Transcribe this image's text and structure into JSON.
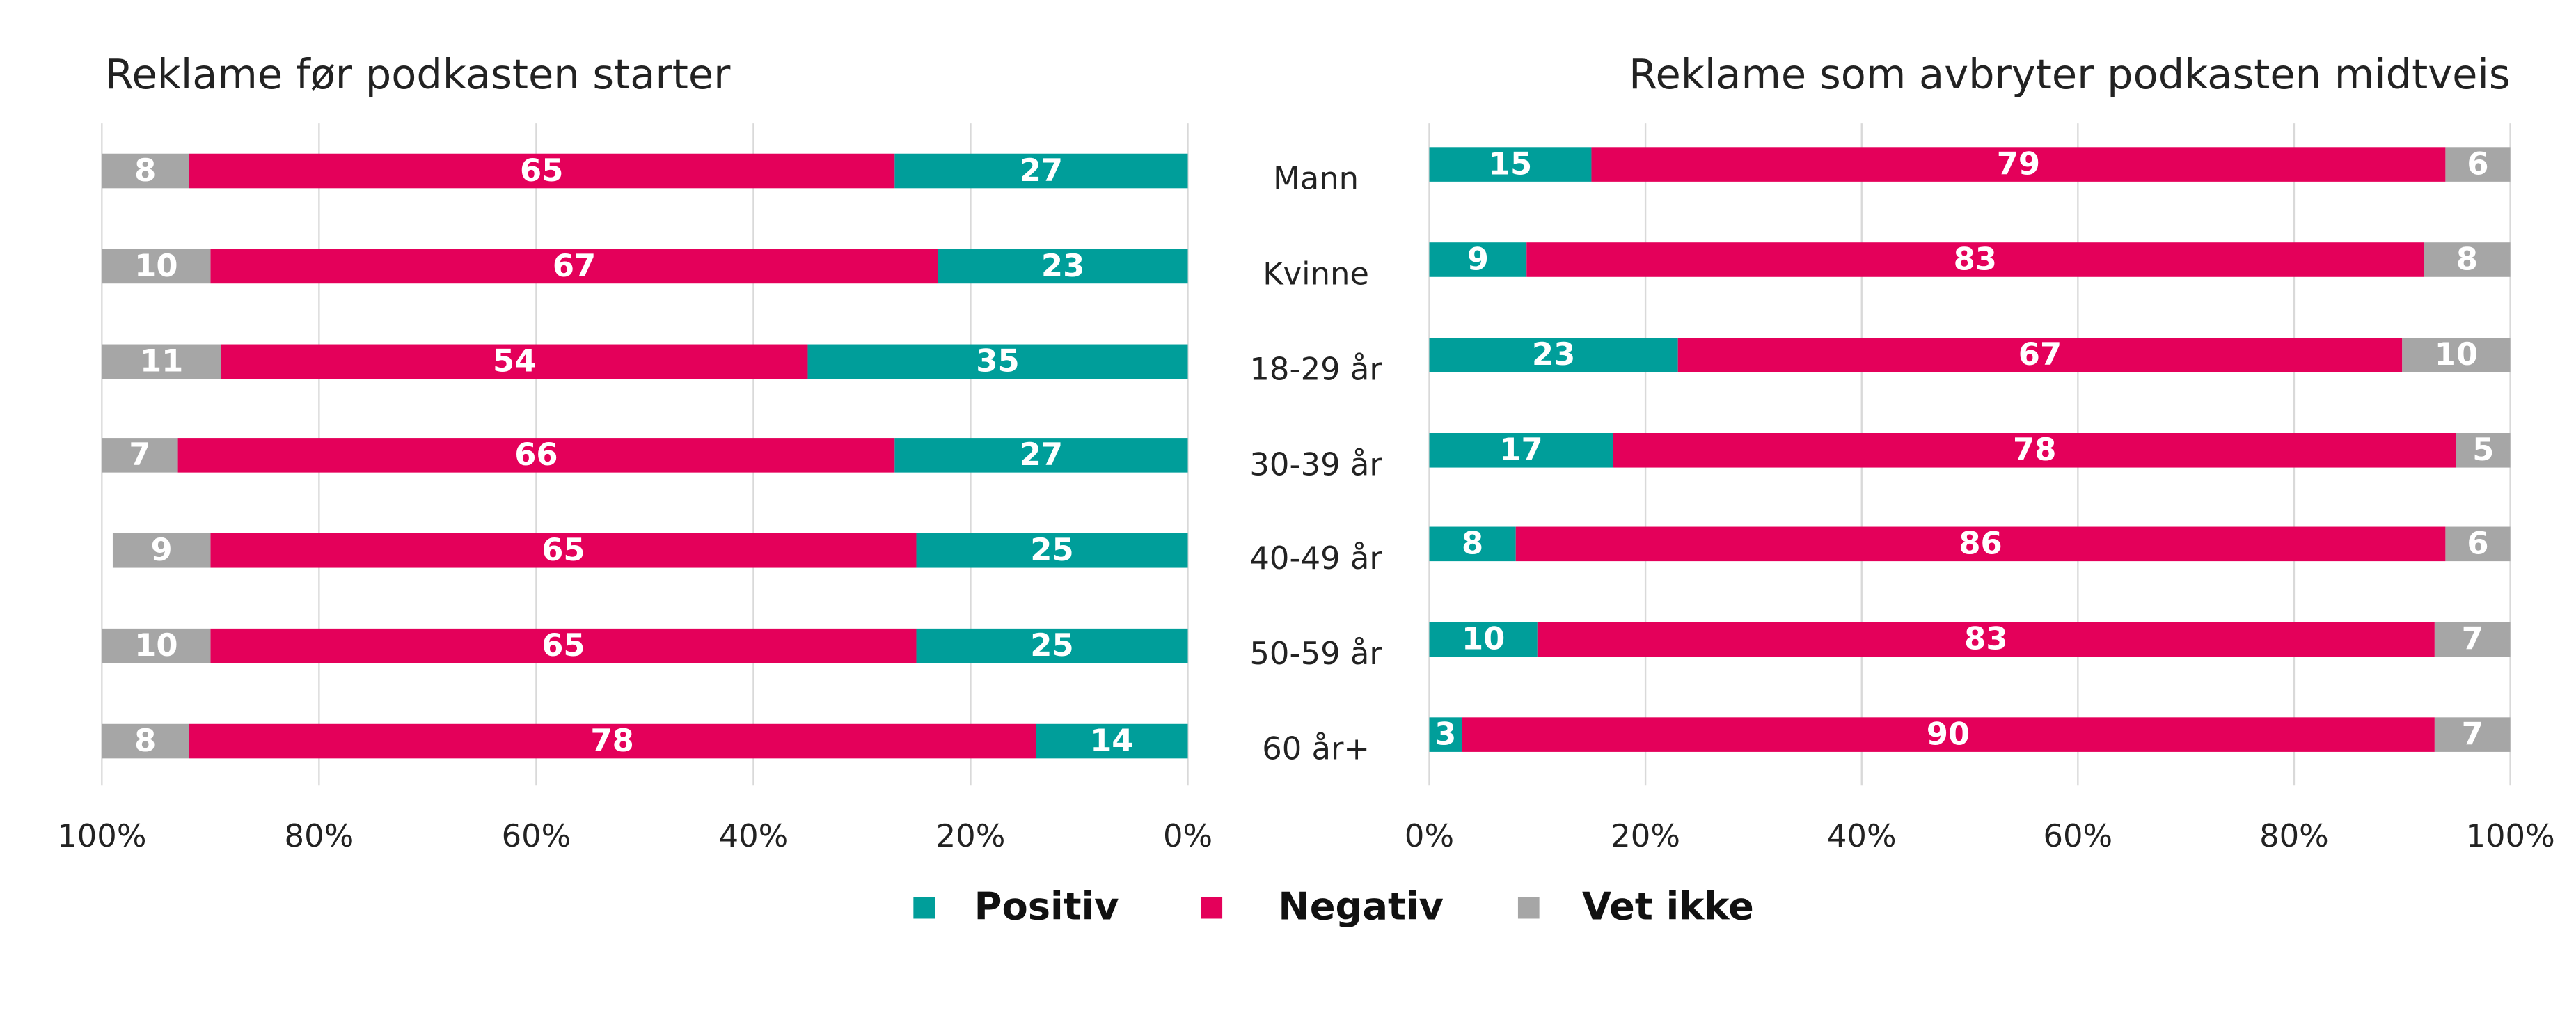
{
  "chart_data": [
    {
      "type": "stacked-bar-horizontal",
      "title": "Reklame før podkasten starter",
      "series": [
        {
          "name": "Positiv",
          "color": "#009e9a",
          "values": [
            27,
            23,
            35,
            27,
            25,
            25,
            14
          ]
        },
        {
          "name": "Negativ",
          "color": "#e4005a",
          "values": [
            65,
            67,
            54,
            66,
            65,
            65,
            78
          ]
        },
        {
          "name": "Vet ikke",
          "color": "#a6a6a6",
          "values": [
            8,
            10,
            11,
            7,
            9,
            10,
            8
          ]
        }
      ],
      "xlim": [
        100,
        0
      ],
      "xticks": [
        {
          "value": 100,
          "label": "100%"
        },
        {
          "value": 80,
          "label": "80%"
        },
        {
          "value": 60,
          "label": "60%"
        },
        {
          "value": 40,
          "label": "40%"
        },
        {
          "value": 20,
          "label": "20%"
        },
        {
          "value": 0,
          "label": "0%"
        }
      ],
      "grid": true,
      "legend": "bottom"
    },
    {
      "type": "stacked-bar-horizontal",
      "title": "Reklame som avbryter podkasten midtveis",
      "categories": [
        "Mann",
        "Kvinne",
        "18-29 år",
        "30-39 år",
        "40-49 år",
        "50-59 år",
        "60 år+"
      ],
      "series": [
        {
          "color": "#009e9a",
          "values": [
            15,
            9,
            23,
            17,
            8,
            10,
            3
          ]
        },
        {
          "color": "#e4005a",
          "values": [
            79,
            83,
            67,
            78,
            86,
            83,
            90
          ]
        },
        {
          "color": "#a6a6a6",
          "values": [
            6,
            8,
            10,
            5,
            6,
            7,
            7
          ]
        }
      ],
      "xlim": [
        0,
        100
      ],
      "xticks": [
        {
          "value": 0,
          "label": "0%"
        },
        {
          "value": 20,
          "label": "20%"
        },
        {
          "value": 40,
          "label": "40%"
        },
        {
          "value": 60,
          "label": "60%"
        },
        {
          "value": 80,
          "label": "80%"
        },
        {
          "value": 100,
          "label": "100%"
        }
      ],
      "grid": true
    }
  ]
}
